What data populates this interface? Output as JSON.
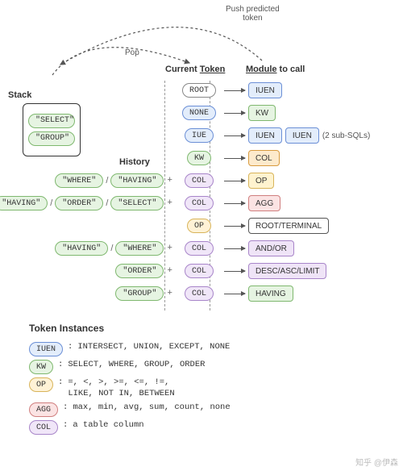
{
  "colors": {
    "iuen_fill": "#e3edfb",
    "iuen_border": "#6b8fd6",
    "kw_fill": "#e6f4e2",
    "kw_border": "#7fb86f",
    "op_fill": "#fff2d6",
    "op_border": "#d8b45a",
    "agg_fill": "#fbe3e3",
    "agg_border": "#d07f7f",
    "col_fill": "#f0e6f8",
    "col_border": "#a885c9",
    "root_fill": "#ffffff",
    "root_border": "#888888",
    "mod_iuen_fill": "#e3edfb",
    "mod_iuen_border": "#6b8fd6",
    "mod_kw_fill": "#e6f4e2",
    "mod_kw_border": "#7fb86f",
    "mod_col_fill": "#fdeacc",
    "mod_col_border": "#d89b3f",
    "mod_op_fill": "#fff3cf",
    "mod_op_border": "#d8b45a",
    "mod_agg_fill": "#fbe3e3",
    "mod_agg_border": "#d07f7f",
    "mod_rt_fill": "#ffffff",
    "mod_rt_border": "#555555",
    "mod_ao_fill": "#efe4f7",
    "mod_ao_border": "#a885c9",
    "mod_dal_fill": "#efe4f7",
    "mod_dal_border": "#a885c9",
    "mod_hav_fill": "#e6f4e2",
    "mod_hav_border": "#7fb86f"
  },
  "labels": {
    "stack": "Stack",
    "history": "History",
    "current_token": "Current",
    "current_token_u": "Token",
    "module_to_call_a": "Module",
    "module_to_call_b": " to call",
    "pop": "Pop",
    "push": "Push predicted\ntoken",
    "sub_sqls": "(2 sub-SQLs)",
    "token_instances": "Token Instances",
    "watermark": "知乎 @伊森"
  },
  "stack_items": [
    "\"SELECT\"",
    "\"GROUP\""
  ],
  "rows": [
    {
      "hist": [],
      "cur": {
        "t": "ROOT",
        "cls": "root"
      },
      "mods": [
        {
          "t": "IUEN",
          "cls": "iuen"
        }
      ],
      "trail": ""
    },
    {
      "hist": [],
      "cur": {
        "t": "NONE",
        "cls": "iuen"
      },
      "mods": [
        {
          "t": "KW",
          "cls": "kw"
        }
      ],
      "trail": ""
    },
    {
      "hist": [],
      "cur": {
        "t": "IUE",
        "cls": "iuen"
      },
      "mods": [
        {
          "t": "IUEN",
          "cls": "iuen"
        },
        {
          "t": "IUEN",
          "cls": "iuen"
        }
      ],
      "trail": "sub_sqls"
    },
    {
      "hist": [],
      "cur": {
        "t": "KW",
        "cls": "kw"
      },
      "mods": [
        {
          "t": "COL",
          "cls": "col_m"
        }
      ],
      "trail": ""
    },
    {
      "hist": [
        [
          "\"WHERE\"",
          "\"HAVING\""
        ]
      ],
      "cur": {
        "t": "COL",
        "cls": "col"
      },
      "mods": [
        {
          "t": "OP",
          "cls": "op_m"
        }
      ],
      "trail": ""
    },
    {
      "hist": [
        [
          "\"HAVING\"",
          "\"ORDER\"",
          "\"SELECT\""
        ]
      ],
      "cur": {
        "t": "COL",
        "cls": "col"
      },
      "mods": [
        {
          "t": "AGG",
          "cls": "agg_m"
        }
      ],
      "trail": ""
    },
    {
      "hist": [],
      "cur": {
        "t": "OP",
        "cls": "op"
      },
      "mods": [
        {
          "t": "ROOT/TERMINAL",
          "cls": "rt"
        }
      ],
      "trail": ""
    },
    {
      "hist": [
        [
          "\"HAVING\"",
          "\"WHERE\""
        ]
      ],
      "cur": {
        "t": "COL",
        "cls": "col"
      },
      "mods": [
        {
          "t": "AND/OR",
          "cls": "ao"
        }
      ],
      "trail": ""
    },
    {
      "hist": [
        [
          "\"ORDER\""
        ]
      ],
      "cur": {
        "t": "COL",
        "cls": "col"
      },
      "mods": [
        {
          "t": "DESC/ASC/LIMIT",
          "cls": "dal"
        }
      ],
      "trail": ""
    },
    {
      "hist": [
        [
          "\"GROUP\""
        ]
      ],
      "cur": {
        "t": "COL",
        "cls": "col"
      },
      "mods": [
        {
          "t": "HAVING",
          "cls": "hav"
        }
      ],
      "trail": ""
    }
  ],
  "legend": [
    {
      "tok": "IUEN",
      "cls": "iuen",
      "desc": "INTERSECT, UNION, EXCEPT, NONE"
    },
    {
      "tok": "KW",
      "cls": "kw",
      "desc": "SELECT, WHERE, GROUP, ORDER"
    },
    {
      "tok": "OP",
      "cls": "op",
      "desc": "=, <, >, >=, <=, !=,\nLIKE, NOT IN, BETWEEN"
    },
    {
      "tok": "AGG",
      "cls": "agg",
      "desc": "max, min, avg, sum, count, none"
    },
    {
      "tok": "COL",
      "cls": "col",
      "desc": "a table column"
    }
  ]
}
